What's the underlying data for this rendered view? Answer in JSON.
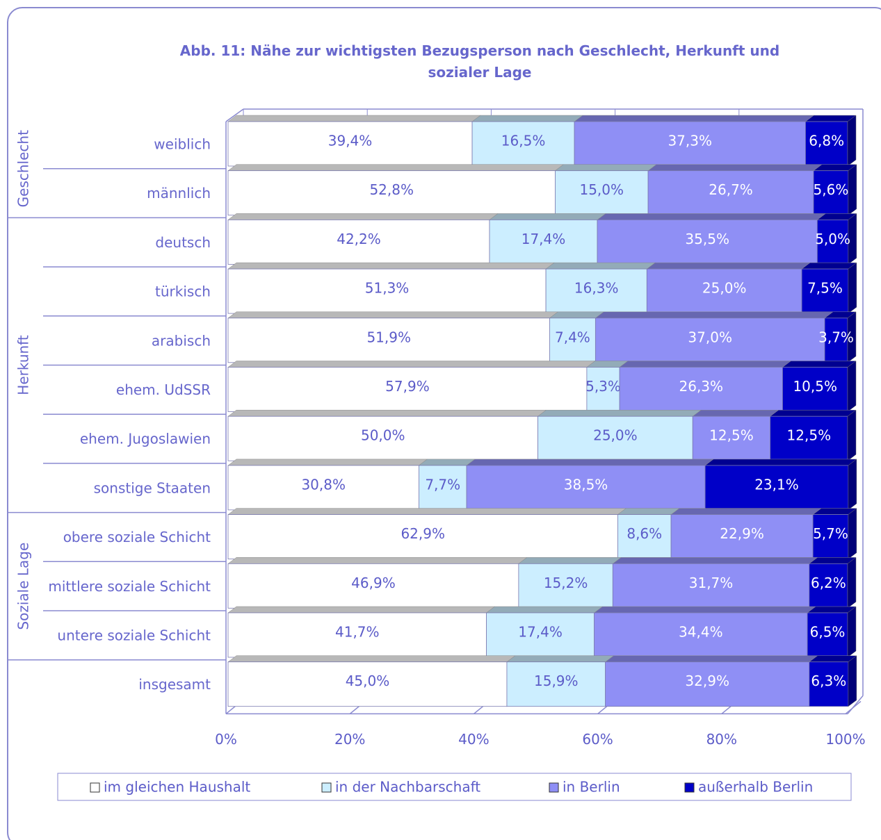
{
  "chart_data": {
    "type": "stacked_bar_horizontal",
    "title": "Abb. 11: Nähe zur wichtigsten Bezugsperson nach Geschlecht, Herkunft und sozialer Lage",
    "categories": [
      "weiblich",
      "männlich",
      "deutsch",
      "türkisch",
      "arabisch",
      "ehem. UdSSR",
      "ehem. Jugoslawien",
      "sonstige Staaten",
      "obere soziale Schicht",
      "mittlere soziale Schicht",
      "untere soziale Schicht",
      "insgesamt"
    ],
    "groups": [
      {
        "label": "Geschlecht",
        "size": 2
      },
      {
        "label": "Herkunft",
        "size": 6
      },
      {
        "label": "Soziale Lage",
        "size": 3
      }
    ],
    "series": [
      {
        "name": "im gleichen Haushalt",
        "color": "#ffffff",
        "values": [
          39.4,
          52.8,
          42.2,
          51.3,
          51.9,
          57.9,
          50.0,
          30.8,
          62.9,
          46.9,
          41.7,
          45.0
        ],
        "value_labels": [
          "39,4%",
          "52,8%",
          "42,2%",
          "51,3%",
          "51,9%",
          "57,9%",
          "50,0%",
          "30,8%",
          "62,9%",
          "46,9%",
          "41,7%",
          "45,0%"
        ]
      },
      {
        "name": "in der Nachbarschaft",
        "color": "#cceeff",
        "values": [
          16.5,
          15.0,
          17.4,
          16.3,
          7.4,
          5.3,
          25.0,
          7.7,
          8.6,
          15.2,
          17.4,
          15.9
        ],
        "value_labels": [
          "16,5%",
          "15,0%",
          "17,4%",
          "16,3%",
          "7,4%",
          "5,3%",
          "25,0%",
          "7,7%",
          "8,6%",
          "15,2%",
          "17,4%",
          "15,9%"
        ]
      },
      {
        "name": "in Berlin",
        "color": "#8f8ff5",
        "values": [
          37.3,
          26.7,
          35.5,
          25.0,
          37.0,
          26.3,
          12.5,
          38.5,
          22.9,
          31.7,
          34.4,
          32.9
        ],
        "value_labels": [
          "37,3%",
          "26,7%",
          "35,5%",
          "25,0%",
          "37,0%",
          "26,3%",
          "12,5%",
          "38,5%",
          "22,9%",
          "31,7%",
          "34,4%",
          "32,9%"
        ]
      },
      {
        "name": "außerhalb Berlin",
        "color": "#0000c8",
        "values": [
          6.8,
          5.6,
          5.0,
          7.5,
          3.7,
          10.5,
          12.5,
          23.1,
          5.7,
          6.2,
          6.5,
          6.3
        ],
        "value_labels": [
          "6,8%",
          "5,6%",
          "5,0%",
          "7,5%",
          "3,7%",
          "10,5%",
          "12,5%",
          "23,1%",
          "5,7%",
          "6,2%",
          "6,5%",
          "6,3%"
        ]
      }
    ],
    "xlim": [
      0,
      100
    ],
    "xticks": [
      {
        "value": 0,
        "label": "0%"
      },
      {
        "value": 20,
        "label": "20%"
      },
      {
        "value": 40,
        "label": "40%"
      },
      {
        "value": 60,
        "label": "60%"
      },
      {
        "value": 80,
        "label": "80%"
      },
      {
        "value": 100,
        "label": "100%"
      }
    ],
    "legend": "bottom"
  }
}
